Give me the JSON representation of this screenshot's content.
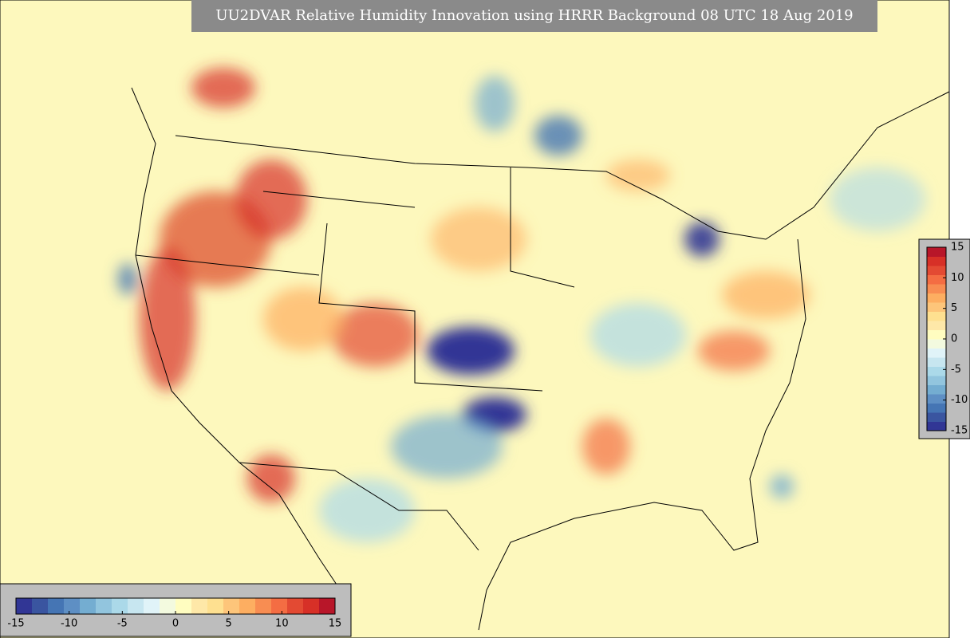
{
  "title": "UU2DVAR Relative Humidity Innovation using HRRR Background 08 UTC 18 Aug 2019",
  "colorbars": [
    {
      "orientation": "horizontal",
      "range": [
        -15,
        15
      ],
      "ticks": [
        -15,
        -10,
        -5,
        0,
        5,
        10,
        15
      ],
      "colors": [
        "#313695",
        "#3a55a0",
        "#4575b4",
        "#5e8fc4",
        "#74add1",
        "#92c5de",
        "#abd9e9",
        "#c7e6f0",
        "#e0f3f8",
        "#f3fadf",
        "#fffdc0",
        "#fee8a8",
        "#fee090",
        "#fdc57a",
        "#fdae61",
        "#f88d52",
        "#f46d43",
        "#e34a33",
        "#d73027",
        "#b81629"
      ]
    },
    {
      "orientation": "vertical",
      "range": [
        -15,
        15
      ],
      "ticks": [
        15,
        10,
        5,
        0,
        -5,
        -10,
        -15
      ],
      "colors": [
        "#313695",
        "#3a55a0",
        "#4575b4",
        "#5e8fc4",
        "#74add1",
        "#92c5de",
        "#abd9e9",
        "#c7e6f0",
        "#e0f3f8",
        "#f3fadf",
        "#fffdc0",
        "#fee8a8",
        "#fee090",
        "#fdc57a",
        "#fdae61",
        "#f88d52",
        "#f46d43",
        "#e34a33",
        "#d73027",
        "#b81629"
      ]
    }
  ]
}
